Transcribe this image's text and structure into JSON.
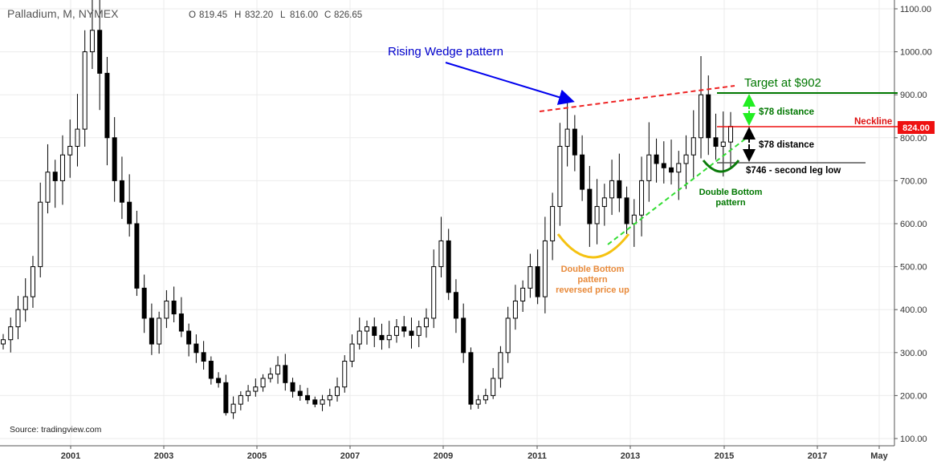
{
  "header": {
    "symbol": "Palladium, M, NYMEX",
    "open_label": "O",
    "open": "819.45",
    "high_label": "H",
    "high": "832.20",
    "low_label": "L",
    "low": "816.00",
    "close_label": "C",
    "close": "826.65"
  },
  "source": "Source: tradingview.com",
  "chart_data": {
    "type": "candlestick",
    "title": "",
    "xlabel": "",
    "ylabel": "",
    "ylim": [
      100,
      1100
    ],
    "x_tick_labels": [
      "2001",
      "2003",
      "2005",
      "2007",
      "2009",
      "2011",
      "2013",
      "2015",
      "2017",
      "May"
    ],
    "y_tick_labels": [
      "100.00",
      "200.00",
      "300.00",
      "400.00",
      "500.00",
      "600.00",
      "700.00",
      "800.00",
      "900.00",
      "1000.00",
      "1100.00"
    ],
    "grid": true,
    "price_marker": "824.00",
    "colors": {
      "up_candle": "#ffffff",
      "down_candle": "#000000",
      "wedge": "#ee2222",
      "support": "#33dd33",
      "neckline": "#ee1111",
      "target": "#006600"
    },
    "closes": [
      330,
      360,
      400,
      430,
      500,
      650,
      720,
      700,
      760,
      780,
      820,
      1000,
      1050,
      950,
      800,
      700,
      650,
      600,
      450,
      380,
      320,
      380,
      420,
      390,
      350,
      320,
      300,
      280,
      240,
      230,
      160,
      180,
      200,
      210,
      220,
      240,
      250,
      270,
      230,
      210,
      200,
      190,
      180,
      190,
      200,
      220,
      280,
      320,
      350,
      360,
      340,
      330,
      340,
      360,
      350,
      340,
      360,
      380,
      500,
      560,
      440,
      380,
      300,
      180,
      190,
      200,
      240,
      300,
      380,
      420,
      450,
      500,
      430,
      560,
      640,
      780,
      820,
      760,
      680,
      600,
      640,
      660,
      700,
      660,
      600,
      620,
      700,
      760,
      740,
      730,
      720,
      740,
      760,
      800,
      900,
      800,
      780,
      790,
      826.65
    ],
    "annotations": {
      "rising_wedge": "Rising Wedge pattern",
      "target": "Target at $902",
      "neckline": "Neckline",
      "distance_upper": "$78 distance",
      "distance_lower": "$78 distance",
      "second_leg_low": "$746 - second leg low",
      "double_bottom_small_1": "Double Bottom",
      "double_bottom_small_2": "pattern",
      "double_bottom_large_1": "Double Bottom",
      "double_bottom_large_2": "pattern",
      "double_bottom_large_3": "reversed price up"
    }
  }
}
